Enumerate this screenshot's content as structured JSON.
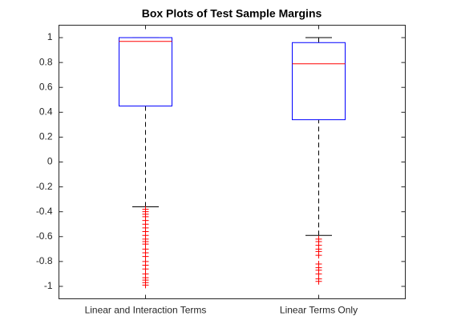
{
  "chart_data": {
    "type": "box",
    "title": "Box Plots of Test Sample Margins",
    "categories": [
      "Linear and Interaction Terms",
      "Linear Terms Only"
    ],
    "boxes": [
      {
        "whisker_low": -0.36,
        "q1": 0.45,
        "median": 0.97,
        "q3": 1,
        "whisker_high": 1,
        "outliers": [
          -0.38,
          -0.4,
          -0.42,
          -0.44,
          -0.47,
          -0.5,
          -0.53,
          -0.56,
          -0.59,
          -0.62,
          -0.64,
          -0.66,
          -0.7,
          -0.73,
          -0.76,
          -0.8,
          -0.83,
          -0.86,
          -0.9,
          -0.93,
          -0.95,
          -0.97,
          -0.99
        ]
      },
      {
        "whisker_low": -0.59,
        "q1": 0.34,
        "median": 0.79,
        "q3": 0.96,
        "whisker_high": 1,
        "outliers": [
          -0.62,
          -0.64,
          -0.67,
          -0.7,
          -0.72,
          -0.75,
          -0.82,
          -0.85,
          -0.87,
          -0.9,
          -0.94,
          -0.96
        ]
      }
    ],
    "box_color": "#0000ff",
    "median_color": "#ff0000",
    "whisker_color": "#000000",
    "outlier_color": "#ff0000",
    "ylim": [
      -1.1,
      1.1
    ],
    "yticks": [
      -1,
      -0.8,
      -0.6,
      -0.4,
      -0.2,
      0,
      0.2,
      0.4,
      0.6,
      0.8,
      1
    ]
  }
}
